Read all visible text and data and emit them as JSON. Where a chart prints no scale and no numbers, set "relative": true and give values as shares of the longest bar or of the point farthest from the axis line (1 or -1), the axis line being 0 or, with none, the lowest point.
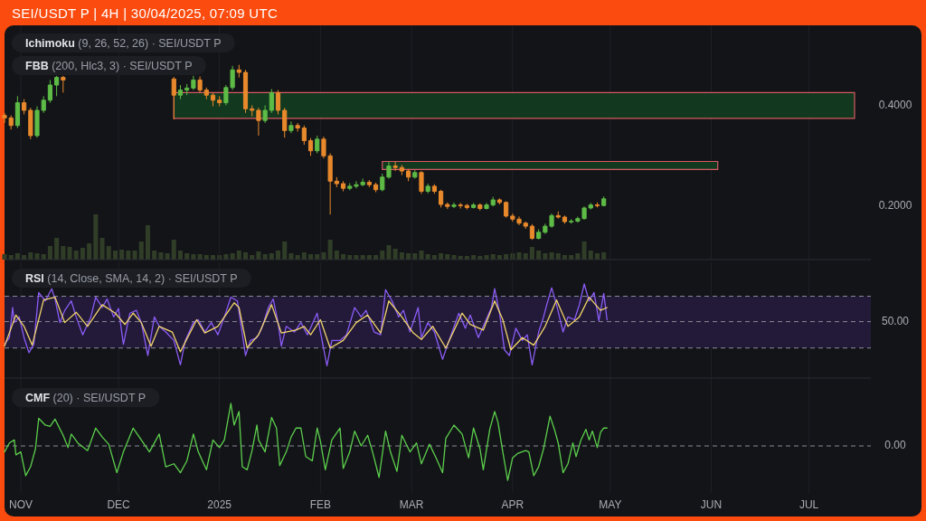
{
  "chart_data": [
    {
      "type": "candlestick",
      "title": "SEI/USDT P | 4H | 30/04/2025, 07:09 UTC",
      "annotations": [
        "Ichimoku (9, 26, 52, 26) · SEI/USDT P",
        "FBB (200, Hlc3, 3) · SEI/USDT P"
      ],
      "x": [
        "2024-10-27",
        "2024-10-29",
        "2024-10-31",
        "2024-11-02",
        "2024-11-04",
        "2024-11-06",
        "2024-11-08",
        "2024-11-10",
        "2024-11-12",
        "2024-11-14",
        "2024-12-18",
        "2024-12-20",
        "2024-12-22",
        "2024-12-24",
        "2024-12-26",
        "2024-12-28",
        "2024-12-30",
        "2025-01-01",
        "2025-01-03",
        "2025-01-05",
        "2025-01-07",
        "2025-01-09",
        "2025-01-11",
        "2025-01-13",
        "2025-01-15",
        "2025-01-17",
        "2025-01-19",
        "2025-01-21",
        "2025-01-23",
        "2025-01-25",
        "2025-01-27",
        "2025-01-29",
        "2025-01-31",
        "2025-02-02",
        "2025-02-04",
        "2025-02-06",
        "2025-02-08",
        "2025-02-10",
        "2025-02-12",
        "2025-02-14",
        "2025-02-16",
        "2025-02-18",
        "2025-02-20",
        "2025-02-22",
        "2025-02-24",
        "2025-02-26",
        "2025-02-28",
        "2025-03-02",
        "2025-03-04",
        "2025-03-06",
        "2025-03-08",
        "2025-03-10",
        "2025-03-12",
        "2025-03-14",
        "2025-03-16",
        "2025-03-18",
        "2025-03-20",
        "2025-03-22",
        "2025-03-24",
        "2025-03-26",
        "2025-03-28",
        "2025-03-30",
        "2025-04-01",
        "2025-04-03",
        "2025-04-05",
        "2025-04-07",
        "2025-04-09",
        "2025-04-11",
        "2025-04-13",
        "2025-04-15",
        "2025-04-17",
        "2025-04-19",
        "2025-04-21",
        "2025-04-23",
        "2025-04-25",
        "2025-04-27",
        "2025-04-29"
      ],
      "ohlc": [
        [
          0.38,
          0.385,
          0.365,
          0.375
        ],
        [
          0.375,
          0.38,
          0.352,
          0.36
        ],
        [
          0.36,
          0.418,
          0.355,
          0.405
        ],
        [
          0.405,
          0.412,
          0.382,
          0.39
        ],
        [
          0.39,
          0.395,
          0.333,
          0.34
        ],
        [
          0.34,
          0.398,
          0.336,
          0.39
        ],
        [
          0.39,
          0.418,
          0.385,
          0.41
        ],
        [
          0.41,
          0.45,
          0.405,
          0.44
        ],
        [
          0.44,
          0.458,
          0.418,
          0.455
        ],
        [
          0.455,
          0.458,
          0.425,
          0.45
        ],
        [
          0.452,
          0.456,
          0.372,
          0.42
        ],
        [
          0.42,
          0.44,
          0.412,
          0.43
        ],
        [
          0.43,
          0.442,
          0.42,
          0.434
        ],
        [
          0.434,
          0.458,
          0.43,
          0.45
        ],
        [
          0.45,
          0.457,
          0.425,
          0.43
        ],
        [
          0.43,
          0.435,
          0.412,
          0.42
        ],
        [
          0.42,
          0.425,
          0.398,
          0.41
        ],
        [
          0.41,
          0.418,
          0.398,
          0.405
        ],
        [
          0.405,
          0.44,
          0.4,
          0.435
        ],
        [
          0.435,
          0.478,
          0.43,
          0.47
        ],
        [
          0.47,
          0.48,
          0.455,
          0.465
        ],
        [
          0.465,
          0.47,
          0.385,
          0.393
        ],
        [
          0.393,
          0.4,
          0.378,
          0.39
        ],
        [
          0.39,
          0.395,
          0.34,
          0.37
        ],
        [
          0.37,
          0.4,
          0.365,
          0.39
        ],
        [
          0.39,
          0.432,
          0.385,
          0.425
        ],
        [
          0.425,
          0.43,
          0.382,
          0.39
        ],
        [
          0.39,
          0.395,
          0.336,
          0.35
        ],
        [
          0.35,
          0.368,
          0.345,
          0.36
        ],
        [
          0.36,
          0.365,
          0.348,
          0.355
        ],
        [
          0.355,
          0.36,
          0.322,
          0.33
        ],
        [
          0.33,
          0.335,
          0.3,
          0.31
        ],
        [
          0.31,
          0.34,
          0.305,
          0.333
        ],
        [
          0.333,
          0.338,
          0.295,
          0.3
        ],
        [
          0.3,
          0.305,
          0.184,
          0.25
        ],
        [
          0.25,
          0.258,
          0.238,
          0.245
        ],
        [
          0.245,
          0.25,
          0.23,
          0.236
        ],
        [
          0.236,
          0.246,
          0.232,
          0.24
        ],
        [
          0.24,
          0.25,
          0.236,
          0.243
        ],
        [
          0.243,
          0.255,
          0.24,
          0.248
        ],
        [
          0.248,
          0.252,
          0.238,
          0.243
        ],
        [
          0.243,
          0.247,
          0.228,
          0.233
        ],
        [
          0.233,
          0.265,
          0.23,
          0.258
        ],
        [
          0.258,
          0.288,
          0.255,
          0.28
        ],
        [
          0.28,
          0.288,
          0.27,
          0.277
        ],
        [
          0.277,
          0.282,
          0.262,
          0.27
        ],
        [
          0.27,
          0.274,
          0.25,
          0.258
        ],
        [
          0.258,
          0.272,
          0.255,
          0.267
        ],
        [
          0.267,
          0.27,
          0.225,
          0.23
        ],
        [
          0.23,
          0.245,
          0.226,
          0.24
        ],
        [
          0.24,
          0.244,
          0.225,
          0.23
        ],
        [
          0.23,
          0.233,
          0.198,
          0.204
        ],
        [
          0.204,
          0.208,
          0.195,
          0.2
        ],
        [
          0.2,
          0.208,
          0.197,
          0.203
        ],
        [
          0.203,
          0.207,
          0.196,
          0.202
        ],
        [
          0.202,
          0.205,
          0.194,
          0.198
        ],
        [
          0.198,
          0.207,
          0.196,
          0.203
        ],
        [
          0.203,
          0.206,
          0.192,
          0.196
        ],
        [
          0.196,
          0.207,
          0.194,
          0.203
        ],
        [
          0.203,
          0.219,
          0.2,
          0.213
        ],
        [
          0.213,
          0.216,
          0.204,
          0.208
        ],
        [
          0.208,
          0.21,
          0.178,
          0.181
        ],
        [
          0.181,
          0.186,
          0.17,
          0.175
        ],
        [
          0.175,
          0.18,
          0.163,
          0.167
        ],
        [
          0.167,
          0.17,
          0.156,
          0.161
        ],
        [
          0.161,
          0.165,
          0.134,
          0.137
        ],
        [
          0.137,
          0.155,
          0.135,
          0.149
        ],
        [
          0.149,
          0.166,
          0.146,
          0.161
        ],
        [
          0.161,
          0.186,
          0.158,
          0.182
        ],
        [
          0.182,
          0.19,
          0.176,
          0.179
        ],
        [
          0.179,
          0.182,
          0.166,
          0.17
        ],
        [
          0.17,
          0.175,
          0.166,
          0.171
        ],
        [
          0.171,
          0.18,
          0.168,
          0.176
        ],
        [
          0.176,
          0.2,
          0.174,
          0.197
        ],
        [
          0.197,
          0.207,
          0.194,
          0.203
        ],
        [
          0.203,
          0.208,
          0.198,
          0.202
        ],
        [
          0.202,
          0.22,
          0.2,
          0.215
        ]
      ],
      "colors": [
        "#e8892c",
        "#e8892c",
        "#5dbb46",
        "#e8892c",
        "#e8892c",
        "#5dbb46",
        "#5dbb46",
        "#5dbb46",
        "#5dbb46",
        "#e8892c",
        "#e8892c",
        "#5dbb46",
        "#5dbb46",
        "#5dbb46",
        "#e8892c",
        "#e8892c",
        "#e8892c",
        "#e8892c",
        "#5dbb46",
        "#5dbb46",
        "#e8892c",
        "#e8892c",
        "#e8892c",
        "#e8892c",
        "#5dbb46",
        "#5dbb46",
        "#e8892c",
        "#e8892c",
        "#5dbb46",
        "#e8892c",
        "#e8892c",
        "#e8892c",
        "#5dbb46",
        "#e8892c",
        "#e8892c",
        "#e8892c",
        "#e8892c",
        "#5dbb46",
        "#5dbb46",
        "#5dbb46",
        "#e8892c",
        "#e8892c",
        "#5dbb46",
        "#5dbb46",
        "#e8892c",
        "#e8892c",
        "#e8892c",
        "#5dbb46",
        "#e8892c",
        "#5dbb46",
        "#e8892c",
        "#e8892c",
        "#e8892c",
        "#5dbb46",
        "#e8892c",
        "#e8892c",
        "#5dbb46",
        "#e8892c",
        "#5dbb46",
        "#5dbb46",
        "#e8892c",
        "#e8892c",
        "#e8892c",
        "#e8892c",
        "#e8892c",
        "#e8892c",
        "#5dbb46",
        "#5dbb46",
        "#5dbb46",
        "#e8892c",
        "#e8892c",
        "#5dbb46",
        "#5dbb46",
        "#5dbb46",
        "#5dbb46",
        "#e8892c",
        "#5dbb46"
      ],
      "series": [
        {
          "type": "area",
          "color": "#12381f",
          "x": [
            "2024-12-18",
            "2025-07-15"
          ],
          "values": [
            null,
            null
          ],
          "lower": [
            0.374,
            0.374
          ],
          "upper": [
            0.425,
            0.425
          ]
        },
        {
          "type": "area",
          "color": "#12381f",
          "x": [
            "2025-02-20",
            "2025-06-03"
          ],
          "values": [
            null,
            null
          ],
          "lower": [
            0.273,
            0.273
          ],
          "upper": [
            0.289,
            0.289
          ]
        }
      ],
      "xlim": [
        "2024-10-27",
        "2025-07-20"
      ],
      "ylim": [
        0.095,
        0.558
      ],
      "xticks": [
        {
          "value": "2024-11-01",
          "label": null
        },
        {
          "value": "2024-12-01",
          "label": null
        },
        {
          "value": "2025-01-01",
          "label": null
        },
        {
          "value": "2025-02-01",
          "label": null
        },
        {
          "value": "2025-03-01",
          "label": null
        },
        {
          "value": "2025-04-01",
          "label": null
        },
        {
          "value": "2025-05-01",
          "label": null
        },
        {
          "value": "2025-06-01",
          "label": null
        },
        {
          "value": "2025-07-01",
          "label": null
        }
      ],
      "yticks": [
        {
          "value": 0.2,
          "label": "0.2000"
        },
        {
          "value": 0.4,
          "label": "0.4000"
        }
      ],
      "tick_labels": "y",
      "grid": "x"
    },
    {
      "type": "bar",
      "relative": true,
      "color": "#303d27",
      "xlim": [
        "2024-10-27",
        "2025-07-20"
      ],
      "x": [
        "2024-10-27",
        "2024-10-29",
        "2024-10-31",
        "2024-11-02",
        "2024-11-04",
        "2024-11-06",
        "2024-11-08",
        "2024-11-10",
        "2024-11-12",
        "2024-11-14",
        "2024-11-16",
        "2024-11-18",
        "2024-11-20",
        "2024-11-22",
        "2024-11-24",
        "2024-11-26",
        "2024-11-28",
        "2024-11-30",
        "2024-12-02",
        "2024-12-04",
        "2024-12-06",
        "2024-12-08",
        "2024-12-10",
        "2024-12-12",
        "2024-12-14",
        "2024-12-16",
        "2024-12-18",
        "2024-12-20",
        "2024-12-22",
        "2024-12-24",
        "2024-12-26",
        "2024-12-28",
        "2024-12-30",
        "2025-01-01",
        "2025-01-03",
        "2025-01-05",
        "2025-01-07",
        "2025-01-09",
        "2025-01-11",
        "2025-01-13",
        "2025-01-15",
        "2025-01-17",
        "2025-01-19",
        "2025-01-21",
        "2025-01-23",
        "2025-01-25",
        "2025-01-27",
        "2025-01-29",
        "2025-01-31",
        "2025-02-02",
        "2025-02-04",
        "2025-02-06",
        "2025-02-08",
        "2025-02-10",
        "2025-02-12",
        "2025-02-14",
        "2025-02-16",
        "2025-02-18",
        "2025-02-20",
        "2025-02-22",
        "2025-02-24",
        "2025-02-26",
        "2025-02-28",
        "2025-03-02",
        "2025-03-04",
        "2025-03-06",
        "2025-03-08",
        "2025-03-10",
        "2025-03-12",
        "2025-03-14",
        "2025-03-16",
        "2025-03-18",
        "2025-03-20",
        "2025-03-22",
        "2025-03-24",
        "2025-03-26",
        "2025-03-28",
        "2025-03-30",
        "2025-04-01",
        "2025-04-03",
        "2025-04-05",
        "2025-04-07",
        "2025-04-09",
        "2025-04-11",
        "2025-04-13",
        "2025-04-15",
        "2025-04-17",
        "2025-04-19",
        "2025-04-21",
        "2025-04-23",
        "2025-04-25",
        "2025-04-27",
        "2025-04-29"
      ],
      "values": [
        0.12,
        0.1,
        0.14,
        0.1,
        0.16,
        0.14,
        0.12,
        0.3,
        0.48,
        0.3,
        0.28,
        0.2,
        0.26,
        0.36,
        1,
        0.48,
        0.3,
        0.2,
        0.22,
        0.2,
        0.2,
        0.4,
        0.76,
        0.2,
        0.16,
        0.14,
        0.44,
        0.2,
        0.14,
        0.12,
        0.12,
        0.1,
        0.1,
        0.1,
        0.12,
        0.14,
        0.2,
        0.16,
        0.1,
        0.18,
        0.12,
        0.14,
        0.2,
        0.4,
        0.14,
        0.1,
        0.16,
        0.12,
        0.12,
        0.16,
        0.44,
        0.2,
        0.12,
        0.1,
        0.1,
        0.1,
        0.1,
        0.1,
        0.2,
        0.32,
        0.24,
        0.16,
        0.14,
        0.14,
        0.2,
        0.12,
        0.1,
        0.14,
        0.12,
        0.1,
        0.08,
        0.08,
        0.1,
        0.08,
        0.1,
        0.12,
        0.1,
        0.12,
        0.14,
        0.16,
        0.14,
        0.28,
        0.2,
        0.14,
        0.16,
        0.14,
        0.1,
        0.1,
        0.14,
        0.4,
        0.2,
        0.14,
        0.16
      ]
    },
    {
      "type": "line",
      "title": "RSI (14, Close, SMA, 14, 2) · SEI/USDT P",
      "relative": true,
      "xlim": [
        "2024-10-27",
        "2025-07-20"
      ],
      "xticks": [
        {
          "value": "2024-11-01",
          "label": null
        },
        {
          "value": "2024-12-01",
          "label": null
        },
        {
          "value": "2025-01-01",
          "label": null
        },
        {
          "value": "2025-02-01",
          "label": null
        },
        {
          "value": "2025-03-01",
          "label": null
        },
        {
          "value": "2025-04-01",
          "label": null
        },
        {
          "value": "2025-05-01",
          "label": null
        },
        {
          "value": "2025-06-01",
          "label": null
        },
        {
          "value": "2025-07-01",
          "label": null
        }
      ],
      "tick_labels": false,
      "grid": "x",
      "annotations": [
        "50.00"
      ],
      "bands": [
        {
          "axis": "y",
          "from": 0.32,
          "to": 0.87,
          "color": "#221a38"
        }
      ],
      "ref_lines": [
        {
          "axis": "y",
          "value": 0.87,
          "line_style": "dashed"
        },
        {
          "axis": "y",
          "value": 0.6,
          "line_style": "dashed"
        },
        {
          "axis": "y",
          "value": 0.32,
          "line_style": "dashed"
        }
      ],
      "series": [
        {
          "color": "#8b5cf6",
          "x": [
            "2024-10-27",
            "2024-10-28T12:00",
            "2024-10-29T12:00",
            "2024-10-30",
            "2024-10-31T12:00",
            "2024-11-02",
            "2024-11-03T12:00",
            "2024-11-05",
            "2024-11-06T12:00",
            "2024-11-08T12:00",
            "2024-11-10T12:00",
            "2024-11-11T12:00",
            "2024-11-13",
            "2024-11-14T12:00",
            "2024-11-16T12:00",
            "2024-11-18",
            "2024-11-20",
            "2024-11-22T12:00",
            "2024-11-24",
            "2024-11-26",
            "2024-11-27T12:00",
            "2024-11-29T12:00",
            "2024-12-01",
            "2024-12-02T12:00",
            "2024-12-04T12:00",
            "2024-12-06T12:00",
            "2024-12-08",
            "2024-12-10",
            "2024-12-12",
            "2024-12-13T12:00",
            "2024-12-15T12:00",
            "2024-12-18",
            "2024-12-20",
            "2024-12-21T12:00",
            "2024-12-24",
            "2024-12-25T12:00",
            "2024-12-27T12:00",
            "2024-12-29T12:00",
            "2024-12-31T12:00",
            "2025-01-02T12:00",
            "2025-01-04T12:00",
            "2025-01-06T12:00",
            "2025-01-07T12:00",
            "2025-01-09",
            "2025-01-10T12:00",
            "2025-01-12T12:00",
            "2025-01-14",
            "2025-01-16",
            "2025-01-17T12:00",
            "2025-01-19",
            "2025-01-20",
            "2025-01-21T12:00",
            "2025-01-24",
            "2025-01-26",
            "2025-01-28",
            "2025-01-31",
            "2025-02-01",
            "2025-02-03",
            "2025-02-04T12:00",
            "2025-02-07",
            "2025-02-09",
            "2025-02-11T12:00",
            "2025-02-13T12:00",
            "2025-02-15",
            "2025-02-17T12:00",
            "2025-02-19T12:00",
            "2025-02-21",
            "2025-02-23",
            "2025-02-25",
            "2025-02-26T12:00",
            "2025-02-28T12:00",
            "2025-03-03",
            "2025-03-04",
            "2025-03-06",
            "2025-03-08",
            "2025-03-10T12:00",
            "2025-03-12T12:00",
            "2025-03-15T12:00",
            "2025-03-17T12:00",
            "2025-03-19",
            "2025-03-21T12:00",
            "2025-03-23",
            "2025-03-25T12:00",
            "2025-03-26T12:00",
            "2025-03-28",
            "2025-03-29T12:00",
            "2025-03-31",
            "2025-04-02",
            "2025-04-04",
            "2025-04-05T12:00",
            "2025-04-07",
            "2025-04-09",
            "2025-04-10T12:00",
            "2025-04-11T12:00",
            "2025-04-13",
            "2025-04-14T12:00",
            "2025-04-16T12:00",
            "2025-04-18",
            "2025-04-20",
            "2025-04-21T12:00",
            "2025-04-23",
            "2025-04-24T12:00",
            "2025-04-26",
            "2025-04-27T12:00",
            "2025-04-29",
            "2025-04-30"
          ],
          "values": [
            0.36,
            0.43,
            0.75,
            0.59,
            0.65,
            0.43,
            0.27,
            0.36,
            0.91,
            0.82,
            0.95,
            0.84,
            0.59,
            0.72,
            0.82,
            0.65,
            0.46,
            0.65,
            0.86,
            0.75,
            0.84,
            0.65,
            0.74,
            0.36,
            0.69,
            0.72,
            0.59,
            0.24,
            0.65,
            0.55,
            0.49,
            0.4,
            0.14,
            0.4,
            0.59,
            0.62,
            0.49,
            0.59,
            0.46,
            0.65,
            0.86,
            0.82,
            0.59,
            0.24,
            0.4,
            0.43,
            0.53,
            0.75,
            0.84,
            0.59,
            0.34,
            0.55,
            0.49,
            0.59,
            0.46,
            0.69,
            0.49,
            0.13,
            0.4,
            0.4,
            0.46,
            0.75,
            0.65,
            0.72,
            0.49,
            0.46,
            0.94,
            0.82,
            0.65,
            0.72,
            0.49,
            0.75,
            0.43,
            0.59,
            0.49,
            0.2,
            0.4,
            0.69,
            0.53,
            0.67,
            0.43,
            0.55,
            0.75,
            0.95,
            0.69,
            0.3,
            0.24,
            0.53,
            0.4,
            0.46,
            0.14,
            0.49,
            0.65,
            0.78,
            0.96,
            0.78,
            0.49,
            0.65,
            0.62,
            0.78,
            1,
            0.82,
            0.91,
            0.61,
            0.9,
            0.62
          ]
        },
        {
          "color": "#f2d56b",
          "x": [
            "2024-10-27",
            "2024-10-30T12:00",
            "2024-11-02",
            "2024-11-04T12:00",
            "2024-11-08",
            "2024-11-11T12:00",
            "2024-11-14T12:00",
            "2024-11-18",
            "2024-11-21T12:00",
            "2024-11-26",
            "2024-11-30",
            "2024-12-03",
            "2024-12-05T12:00",
            "2024-12-08",
            "2024-12-11",
            "2024-12-13T12:00",
            "2024-12-17T12:00",
            "2024-12-20",
            "2024-12-25",
            "2024-12-27T12:00",
            "2024-12-31T12:00",
            "2025-01-05T12:00",
            "2025-01-07",
            "2025-01-09T12:00",
            "2025-01-13",
            "2025-01-17",
            "2025-01-20",
            "2025-01-24T12:00",
            "2025-01-27",
            "2025-01-29",
            "2025-02-01",
            "2025-02-04",
            "2025-02-08",
            "2025-02-12",
            "2025-02-15T12:00",
            "2025-02-19T12:00",
            "2025-02-22",
            "2025-02-26",
            "2025-03-01T12:00",
            "2025-03-04",
            "2025-03-07T12:00",
            "2025-03-11T12:00",
            "2025-03-16T12:00",
            "2025-03-19",
            "2025-03-23",
            "2025-03-26T12:00",
            "2025-03-29",
            "2025-03-31T12:00",
            "2025-04-04",
            "2025-04-07T12:00",
            "2025-04-11",
            "2025-04-14T12:00",
            "2025-04-18",
            "2025-04-21T12:00",
            "2025-04-24T12:00",
            "2025-04-28",
            "2025-04-30"
          ],
          "values": [
            0.34,
            0.67,
            0.55,
            0.35,
            0.83,
            0.86,
            0.59,
            0.7,
            0.55,
            0.78,
            0.69,
            0.57,
            0.69,
            0.59,
            0.34,
            0.55,
            0.49,
            0.28,
            0.62,
            0.48,
            0.55,
            0.8,
            0.75,
            0.32,
            0.46,
            0.78,
            0.48,
            0.51,
            0.55,
            0.46,
            0.62,
            0.32,
            0.4,
            0.59,
            0.67,
            0.48,
            0.82,
            0.65,
            0.48,
            0.41,
            0.55,
            0.32,
            0.69,
            0.57,
            0.51,
            0.82,
            0.62,
            0.3,
            0.43,
            0.35,
            0.55,
            0.83,
            0.55,
            0.65,
            0.86,
            0.72,
            0.75
          ]
        }
      ]
    },
    {
      "type": "line",
      "title": "CMF (20) · SEI/USDT P",
      "relative": true,
      "xlim": [
        "2024-10-27",
        "2025-07-20"
      ],
      "xticks": [
        {
          "value": "2024-11-01",
          "label": "NOV"
        },
        {
          "value": "2024-12-01",
          "label": "DEC"
        },
        {
          "value": "2025-01-01",
          "label": "2025"
        },
        {
          "value": "2025-02-01",
          "label": "FEB"
        },
        {
          "value": "2025-03-01",
          "label": "MAR"
        },
        {
          "value": "2025-04-01",
          "label": "APR"
        },
        {
          "value": "2025-05-01",
          "label": "MAY"
        },
        {
          "value": "2025-06-01",
          "label": "JUN"
        },
        {
          "value": "2025-07-01",
          "label": "JUL"
        }
      ],
      "tick_labels": "x",
      "grid": "x",
      "ref_lines": [
        {
          "axis": "y",
          "value": 0,
          "label": "0.00",
          "line_style": "dashed"
        }
      ],
      "series": [
        {
          "color": "#5ccf4c",
          "x": [
            "2024-10-27",
            "2024-10-28T12:00",
            "2024-10-30",
            "2024-10-30T12:00",
            "2024-11-01",
            "2024-11-02T12:00",
            "2024-11-04",
            "2024-11-05T12:00",
            "2024-11-06T12:00",
            "2024-11-08T12:00",
            "2024-11-10",
            "2024-11-11T12:00",
            "2024-11-14",
            "2024-11-15T12:00",
            "2024-11-16T12:00",
            "2024-11-18T12:00",
            "2024-11-21T12:00",
            "2024-11-24",
            "2024-11-26",
            "2024-11-28",
            "2024-11-30T12:00",
            "2024-12-02T12:00",
            "2024-12-05T12:00",
            "2024-12-08",
            "2024-12-10T12:00",
            "2024-12-13T12:00",
            "2024-12-15T12:00",
            "2024-12-18",
            "2024-12-20",
            "2024-12-22",
            "2024-12-24",
            "2024-12-25T12:00",
            "2024-12-28",
            "2024-12-30",
            "2025-01-01",
            "2025-01-02T12:00",
            "2025-01-04T12:00",
            "2025-01-05T12:00",
            "2025-01-07",
            "2025-01-08",
            "2025-01-09T12:00",
            "2025-01-11",
            "2025-01-12T12:00",
            "2025-01-13",
            "2025-01-15",
            "2025-01-17",
            "2025-01-18T12:00",
            "2025-01-19T12:00",
            "2025-01-21T12:00",
            "2025-01-23",
            "2025-01-24T12:00",
            "2025-01-26",
            "2025-01-27T12:00",
            "2025-01-29T12:00",
            "2025-01-31",
            "2025-02-01",
            "2025-02-02T12:00",
            "2025-02-04T12:00",
            "2025-02-07",
            "2025-02-08",
            "2025-02-10",
            "2025-02-11T12:00",
            "2025-02-13T12:00",
            "2025-02-15T12:00",
            "2025-02-17",
            "2025-02-19",
            "2025-02-21",
            "2025-02-22T12:00",
            "2025-02-24T12:00",
            "2025-02-26",
            "2025-02-28T12:00",
            "2025-03-02T12:00",
            "2025-03-04",
            "2025-03-06T12:00",
            "2025-03-08T12:00",
            "2025-03-10T12:00",
            "2025-03-11T12:00",
            "2025-03-14",
            "2025-03-16T12:00",
            "2025-03-18T12:00",
            "2025-03-20",
            "2025-03-22",
            "2025-03-23",
            "2025-03-25",
            "2025-03-26T12:00",
            "2025-03-27T12:00",
            "2025-03-29",
            "2025-03-30T12:00",
            "2025-04-01",
            "2025-04-02T12:00",
            "2025-04-05",
            "2025-04-06",
            "2025-04-07T12:00",
            "2025-04-09",
            "2025-04-10T12:00",
            "2025-04-12T12:00",
            "2025-04-14",
            "2025-04-15",
            "2025-04-16T12:00",
            "2025-04-18",
            "2025-04-19T12:00",
            "2025-04-20T12:00",
            "2025-04-22",
            "2025-04-23T12:00",
            "2025-04-24T12:00",
            "2025-04-25T12:00",
            "2025-04-27",
            "2025-04-28",
            "2025-04-29",
            "2025-04-30"
          ],
          "values": [
            -0.14,
            0.07,
            0.14,
            -0.21,
            -0.14,
            -0.7,
            -0.49,
            -0.07,
            0.65,
            0.49,
            0.46,
            0.63,
            0.25,
            -0.04,
            0.28,
            0.07,
            -0.11,
            0.42,
            0.21,
            0.04,
            -0.63,
            -0.14,
            0.42,
            0.14,
            -0.14,
            0.28,
            -0.49,
            -0.42,
            -0.63,
            -0.35,
            0.28,
            -0.14,
            -0.56,
            0.14,
            -0.04,
            0.14,
            1,
            0.49,
            0.81,
            -0.49,
            -0.56,
            -0.11,
            0.49,
            0.14,
            -0.14,
            0.67,
            0.42,
            -0.46,
            -0.14,
            0.21,
            0.42,
            0.42,
            -0.25,
            -0.35,
            0.42,
            0.11,
            -0.56,
            0.14,
            0.42,
            -0.53,
            -0.14,
            0.35,
            0,
            0.25,
            -0.14,
            -0.74,
            0.35,
            -0.14,
            -0.6,
            0.25,
            -0.14,
            0.07,
            -0.42,
            0.04,
            -0.28,
            -0.63,
            0.18,
            0.49,
            0.28,
            -0.28,
            0.42,
            -0.07,
            -0.56,
            0.39,
            0.81,
            0.56,
            -0.14,
            -0.81,
            -0.28,
            -0.18,
            -0.11,
            -0.14,
            -0.7,
            -0.49,
            -0.07,
            0.7,
            0.35,
            0.07,
            -0.63,
            -0.42,
            0.07,
            -0.25,
            0.14,
            0.39,
            0.14,
            0.35,
            -0.04,
            0.32,
            0.42,
            0.42
          ]
        }
      ]
    }
  ]
}
